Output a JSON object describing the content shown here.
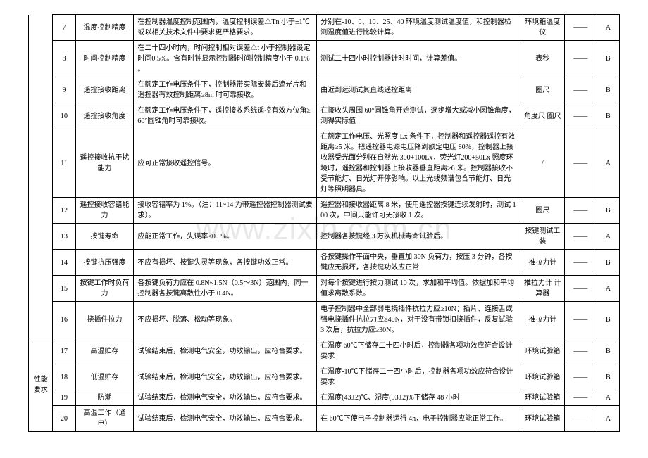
{
  "category_label": "性能要求",
  "watermark": "www.zixin.com.cn",
  "rows": [
    {
      "num": "7",
      "name": "温度控制精度",
      "req": "在控制器温度控制范围内，温度控制误差△Tn 小于±1℃或以相关技术文件中要求更严格要求。",
      "method": "分别在-10、0、10、25、40 环境温度测试温度值，和控制器检测温度值进行比较计算。",
      "tool": "环境箱温度仪",
      "grade": "A"
    },
    {
      "num": "8",
      "name": "时间控制精度",
      "req": "在二十四小时内，时间控制相对误差△t 小于控制器设定时间0.5%。含有时钟显示控制器时间控制精度小于 0.1% 。",
      "method": "测试二十四小时控制器计时时间，计算差值。",
      "tool": "表秒",
      "grade": "B"
    },
    {
      "num": "9",
      "name": "遥控接收距离",
      "req": "在额定工作电压条件下，控制器带实际安装后遮光片和遥控器有效控制距离≥8m 时可靠接收。",
      "method": "由近到远测试其直线遥控距离",
      "tool": "圈尺",
      "grade": "B"
    },
    {
      "num": "10",
      "name": "遥控接收角度",
      "req": "在额定工作电压条件下，遥控接收系统遥控有效方位角≥60°圆锥角时可靠接收。",
      "method": "在接收头周围 60°圆锥角开始测试，逐步增大或减小圆锥角度，测得实际值",
      "tool": "角度尺 圈尺",
      "grade": "B"
    },
    {
      "num": "11",
      "name": "遥控接收抗干扰能力",
      "req": "应可正常接收遥控信号。",
      "method": "在额定工作电压、光照度 Lx 条件下，控制器和遥控器遥控有效距离≥5 米。把遥控器电源电压降到额定电压 80%，控制器上接收器受光面分别在自然光 300+100Lx，荧光灯200+50Lx 照度环境时，遥控器和控制器上接收器垂直距离≥6 米。控制器接收不受节能灯、日光灯开停影响。以上光线频谱包含节能灯、日光灯等照明器具。",
      "tool": "/",
      "grade": "A"
    },
    {
      "num": "12",
      "name": "遥控接收容错能力",
      "req": "接收容错率为 1%。（注：11~14 为带遥控器控制器测试要求）。",
      "method": "遥控器和接收器距离 8 米，使用遥控器按键连续发射时，测试 100 次，中间只能许可无接收 1 次。",
      "tool": "圈尺",
      "grade": "B"
    },
    {
      "num": "13",
      "name": "按键寿命",
      "req": "应能正常工作，失误率≤0.5%。",
      "method": "控制器各按键经 3 万次机械寿命试验后。",
      "tool": "按键测试工装",
      "grade": "A"
    },
    {
      "num": "14",
      "name": "按键抗压强度",
      "req": "不应有损坏、按键失灵等现象，各按键功效正常。",
      "method": "各按键操作平面中央，垂直加 30N 负荷力，按压 3 分钟，各按键应无损坏，各按键功效应正常",
      "tool": "推拉力计",
      "grade": "B"
    },
    {
      "num": "15",
      "name": "按键工作时负荷力",
      "req": "各按键负荷力应在 0.8N~1.5N（0.5～3N）范围内，同一控制器各按键离散性小于 0.4N。",
      "method": "对每个按键进行按力测试 10 次，求加和平均值。依据加和平均值求离散系数。",
      "tool": "推拉力计 计算器",
      "grade": "A"
    },
    {
      "num": "16",
      "name": "挠插件拉力",
      "req": "不应损坏、脱落、松动等现象。",
      "method": "电子控制器中全部弱电挠插件抗拉力应≥10N；插片、连接舌或强电挠插件抗拉力应≥40N，对于没有带锁扣挠插件，反复试验 3 次后，抗拉力应≥30N。",
      "tool": "推拉力计",
      "grade": "B"
    },
    {
      "num": "17",
      "name": "高温贮存",
      "req": "试验结束后，检测电气安全，功效输出，应符合要求。",
      "method": "在温度 60℃下储存二十四小时后，控制器各项功效应符合设计要求",
      "tool": "环境试验箱",
      "grade": "B"
    },
    {
      "num": "18",
      "name": "低温贮存",
      "req": "试验结束后，检测电气安全，功效输出，应符合要求。",
      "method": "在温度-10℃下储存二十四小时后，控制器各项功效应符合设计要求",
      "tool": "环境试验箱",
      "grade": "B"
    },
    {
      "num": "19",
      "name": "防潮",
      "req": "试验结束后，检测电气安全，功效输出，应符合要求。",
      "method": "在温度(43±2)℃、湿度(93±2)%下储存 48 小时",
      "tool": "环境试验箱",
      "grade": "A"
    },
    {
      "num": "20",
      "name": "高温工作（通电）",
      "req": "试验结束后，检测电气安全，功效输出，应符合要求。",
      "method": "在 60℃下使电子控制器运行 4h，电子控制器应能正常工作。",
      "tool": "环境试验箱",
      "grade": "A"
    }
  ],
  "dash": "——",
  "styles": {
    "font_size_pt": 10,
    "border_color": "#000000",
    "background_color": "#ffffff",
    "text_color": "#000000",
    "watermark_color": "rgba(0,0,0,0.09)"
  },
  "category_start_index": 10
}
